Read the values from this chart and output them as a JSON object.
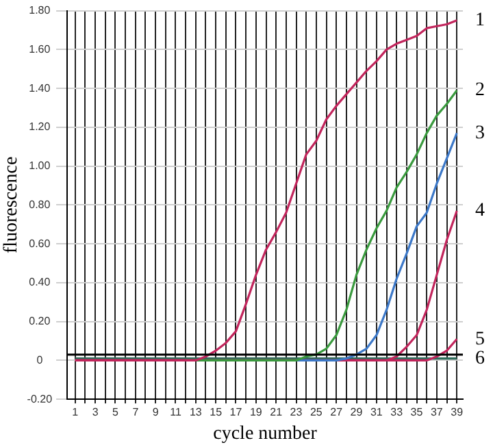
{
  "chart_data": {
    "type": "line",
    "xlabel": "cycle number",
    "ylabel": "fluorescence",
    "x": [
      1,
      2,
      3,
      4,
      5,
      6,
      7,
      8,
      9,
      10,
      11,
      12,
      13,
      14,
      15,
      16,
      17,
      18,
      19,
      20,
      21,
      22,
      23,
      24,
      25,
      26,
      27,
      28,
      29,
      30,
      31,
      32,
      33,
      34,
      35,
      36,
      37,
      38,
      39
    ],
    "series": [
      {
        "name": "1",
        "color": "#c2255c",
        "values": [
          0,
          0,
          0,
          0,
          0,
          0,
          0,
          0,
          0,
          0,
          0,
          0,
          0,
          0.02,
          0.05,
          0.09,
          0.15,
          0.29,
          0.44,
          0.57,
          0.66,
          0.76,
          0.91,
          1.06,
          1.13,
          1.24,
          1.31,
          1.37,
          1.43,
          1.49,
          1.54,
          1.6,
          1.63,
          1.65,
          1.67,
          1.71,
          1.72,
          1.73,
          1.75
        ]
      },
      {
        "name": "2",
        "color": "#3a9a3e",
        "values": [
          null,
          null,
          null,
          null,
          null,
          null,
          null,
          null,
          null,
          null,
          null,
          0,
          0,
          0,
          0,
          0,
          0,
          0,
          0,
          0,
          0,
          0,
          0,
          0.02,
          0.03,
          0.06,
          0.13,
          0.26,
          0.44,
          0.57,
          0.68,
          0.77,
          0.89,
          0.97,
          1.06,
          1.17,
          1.26,
          1.32,
          1.39
        ]
      },
      {
        "name": "3",
        "color": "#3c78c8",
        "values": [
          null,
          null,
          null,
          null,
          null,
          null,
          null,
          null,
          null,
          null,
          null,
          null,
          null,
          null,
          null,
          null,
          null,
          null,
          null,
          null,
          null,
          null,
          0,
          0,
          0,
          0,
          0,
          0.01,
          0.03,
          0.06,
          0.13,
          0.26,
          0.42,
          0.55,
          0.69,
          0.76,
          0.91,
          1.04,
          1.17
        ]
      },
      {
        "name": "4",
        "color": "#c2255c",
        "values": [
          0,
          0,
          0,
          0,
          0,
          0,
          0,
          0,
          0,
          0,
          0,
          0,
          0,
          0,
          0,
          0,
          0,
          0,
          0,
          0,
          0,
          0,
          0,
          0,
          0,
          0,
          0,
          0,
          0,
          0,
          0,
          0,
          0.02,
          0.07,
          0.13,
          0.26,
          0.44,
          0.62,
          0.77
        ]
      },
      {
        "name": "5",
        "color": "#c2255c",
        "values": [
          0,
          0,
          0,
          0,
          0,
          0,
          0,
          0,
          0,
          0,
          0,
          0,
          0,
          0,
          0,
          0,
          0,
          0,
          0,
          0,
          0,
          0,
          0,
          0,
          0,
          0,
          0,
          0,
          0,
          0,
          0,
          0,
          0,
          0,
          0,
          0,
          0.02,
          0.05,
          0.11
        ]
      },
      {
        "name": "6",
        "color": "#2e6b5a",
        "values": [
          0.01,
          0.01,
          0.01,
          0.01,
          0.01,
          0.01,
          0.01,
          0.01,
          0.01,
          0.01,
          0.01,
          0.01,
          0.01,
          0.01,
          0.01,
          0.01,
          0.01,
          0.01,
          0.01,
          0.01,
          0.01,
          0.01,
          0.01,
          0.01,
          0.01,
          0.01,
          0.01,
          0.01,
          0.01,
          0.01,
          0.01,
          0.01,
          0.01,
          0.01,
          0.01,
          0.01,
          0.01,
          0.01,
          0.01
        ]
      }
    ],
    "xlim": [
      0.2,
      39.6
    ],
    "xticks": [
      1,
      {
        "value": 2,
        "label": null
      },
      3,
      {
        "value": 4,
        "label": null
      },
      5,
      {
        "value": 6,
        "label": null
      },
      7,
      {
        "value": 8,
        "label": null
      },
      9,
      {
        "value": 10,
        "label": null
      },
      11,
      {
        "value": 12,
        "label": null
      },
      13,
      {
        "value": 14,
        "label": null
      },
      15,
      {
        "value": 16,
        "label": null
      },
      17,
      {
        "value": 18,
        "label": null
      },
      19,
      {
        "value": 20,
        "label": null
      },
      21,
      {
        "value": 22,
        "label": null
      },
      23,
      {
        "value": 24,
        "label": null
      },
      25,
      {
        "value": 26,
        "label": null
      },
      27,
      {
        "value": 28,
        "label": null
      },
      29,
      {
        "value": 30,
        "label": null
      },
      31,
      {
        "value": 32,
        "label": null
      },
      33,
      {
        "value": 34,
        "label": null
      },
      35,
      {
        "value": 36,
        "label": null
      },
      37,
      {
        "value": 38,
        "label": null
      },
      39
    ],
    "ylim": [
      -0.2,
      1.8
    ],
    "yticks": [
      {
        "value": -0.2,
        "label": "-0.20"
      },
      0,
      {
        "value": 0.2,
        "label": "0.20"
      },
      {
        "value": 0.4,
        "label": "0.40"
      },
      {
        "value": 0.6,
        "label": "0.60"
      },
      {
        "value": 0.8,
        "label": "0.80"
      },
      {
        "value": 1,
        "label": "1.00"
      },
      {
        "value": 1.2,
        "label": "1.20"
      },
      {
        "value": 1.4,
        "label": "1.40"
      },
      {
        "value": 1.6,
        "label": "1.60"
      },
      {
        "value": 1.8,
        "label": "1.80"
      }
    ],
    "ref_lines": [
      {
        "axis": "y",
        "value": 0.03,
        "color": "#000000"
      }
    ],
    "grid": true,
    "legend": false,
    "marker": "none",
    "line_style": "solid"
  }
}
